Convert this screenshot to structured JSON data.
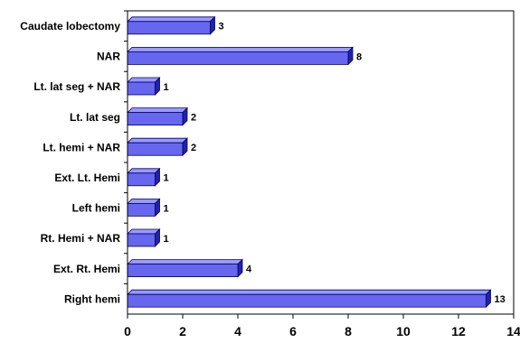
{
  "chart_data": {
    "type": "bar",
    "orientation": "horizontal",
    "categories": [
      "Caudate lobectomy",
      "NAR",
      "Lt. lat seg + NAR",
      "Lt. lat seg",
      "Lt. hemi + NAR",
      "Ext. Lt. Hemi",
      "Left hemi",
      "Rt. Hemi + NAR",
      "Ext. Rt. Hemi",
      "Right hemi"
    ],
    "values": [
      3,
      8,
      1,
      2,
      2,
      1,
      1,
      1,
      4,
      13
    ],
    "value_labels": [
      "3",
      "8",
      "1",
      "2",
      "2",
      "1",
      "1",
      "1",
      "4",
      "13"
    ],
    "xlim": [
      0,
      14
    ],
    "x_ticks": [
      "0",
      "2",
      "4",
      "6",
      "8",
      "10",
      "12",
      "14"
    ],
    "title": "",
    "xlabel": "",
    "ylabel": "",
    "grid": false,
    "legend": "none",
    "bar_style": "3d",
    "colors": {
      "bar_face": "#6666ee",
      "bar_top": "#9999ff",
      "bar_side": "#2222aa",
      "bar_outline": "#000066",
      "axis": "#000000"
    }
  }
}
